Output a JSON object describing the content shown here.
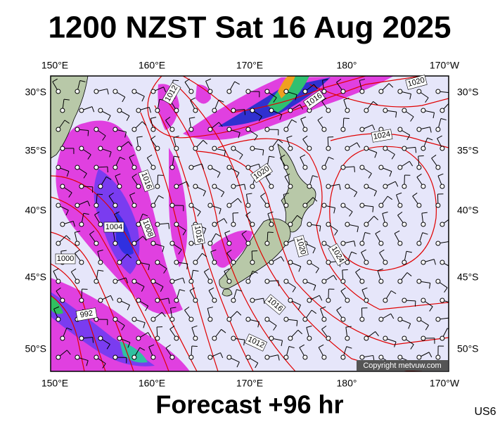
{
  "header": {
    "title": "1200 NZST Sat 16 Aug 2025"
  },
  "map": {
    "lon_labels": [
      "150°E",
      "160°E",
      "170°E",
      "180°",
      "170°W"
    ],
    "lat_labels": [
      "30°S",
      "35°S",
      "40°S",
      "45°S",
      "50°S"
    ],
    "isobar_labels": [
      "1012",
      "1016",
      "1020",
      "1024",
      "1020",
      "1016",
      "1004",
      "1008",
      "1016",
      "1000",
      "1020",
      "1024",
      "992",
      "1016",
      "1012"
    ],
    "credit": "Copyright metvuw.com"
  },
  "footer": {
    "forecast": "Forecast +96 hr",
    "code": "US6"
  }
}
